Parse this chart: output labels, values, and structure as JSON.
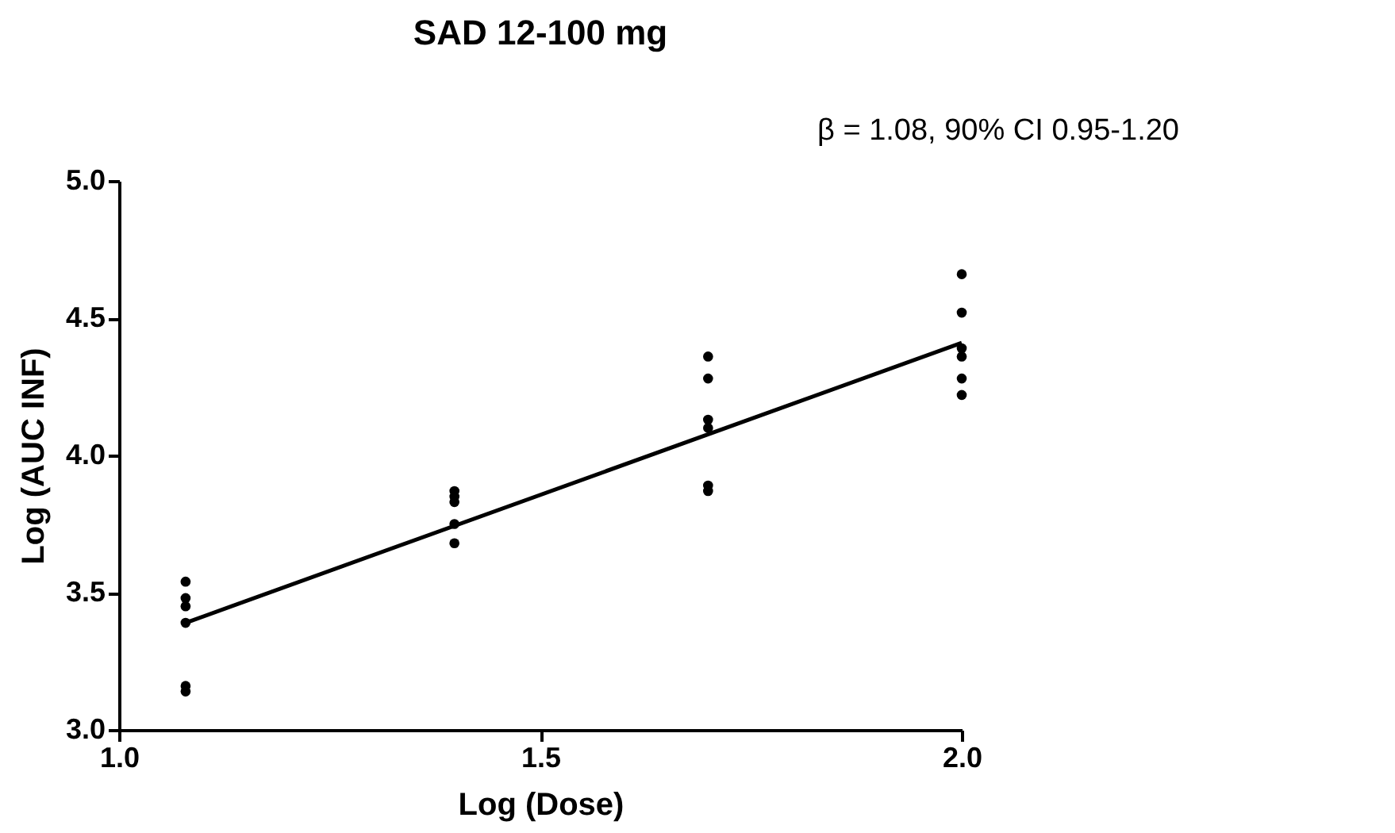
{
  "chart_data": {
    "type": "scatter",
    "title": "SAD 12-100 mg",
    "xlabel": "Log (Dose)",
    "ylabel": "Log (AUC INF)",
    "annotations": [
      "β = 1.08, 90% CI 0.95-1.20"
    ],
    "series": [
      {
        "type": "scatter",
        "color": "#000000",
        "marker": "circle",
        "x": [
          1.079,
          1.079,
          1.079,
          1.079,
          1.079,
          1.079,
          1.398,
          1.398,
          1.398,
          1.398,
          1.398,
          1.699,
          1.699,
          1.699,
          1.699,
          1.699,
          1.699,
          2.0,
          2.0,
          2.0,
          2.0,
          2.0,
          2.0
        ],
        "values": [
          3.54,
          3.48,
          3.45,
          3.39,
          3.16,
          3.14,
          3.87,
          3.85,
          3.83,
          3.75,
          3.68,
          4.36,
          4.28,
          4.13,
          4.1,
          3.89,
          3.87,
          4.66,
          4.52,
          4.39,
          4.36,
          4.28,
          4.22
        ]
      },
      {
        "type": "line",
        "color": "#000000",
        "x": [
          1.079,
          2.0
        ],
        "values": [
          3.39,
          4.41
        ]
      }
    ],
    "xlim": [
      1.0,
      2.0
    ],
    "xticks": [
      {
        "value": 1,
        "label": "1.0"
      },
      1.5,
      {
        "value": 2,
        "label": "2.0"
      }
    ],
    "ylim": [
      3.0,
      5.0
    ],
    "yticks": [
      {
        "value": 3,
        "label": "3.0"
      },
      3.5,
      {
        "value": 4,
        "label": "4.0"
      },
      4.5,
      {
        "value": 5,
        "label": "5.0"
      }
    ],
    "grid": false
  }
}
